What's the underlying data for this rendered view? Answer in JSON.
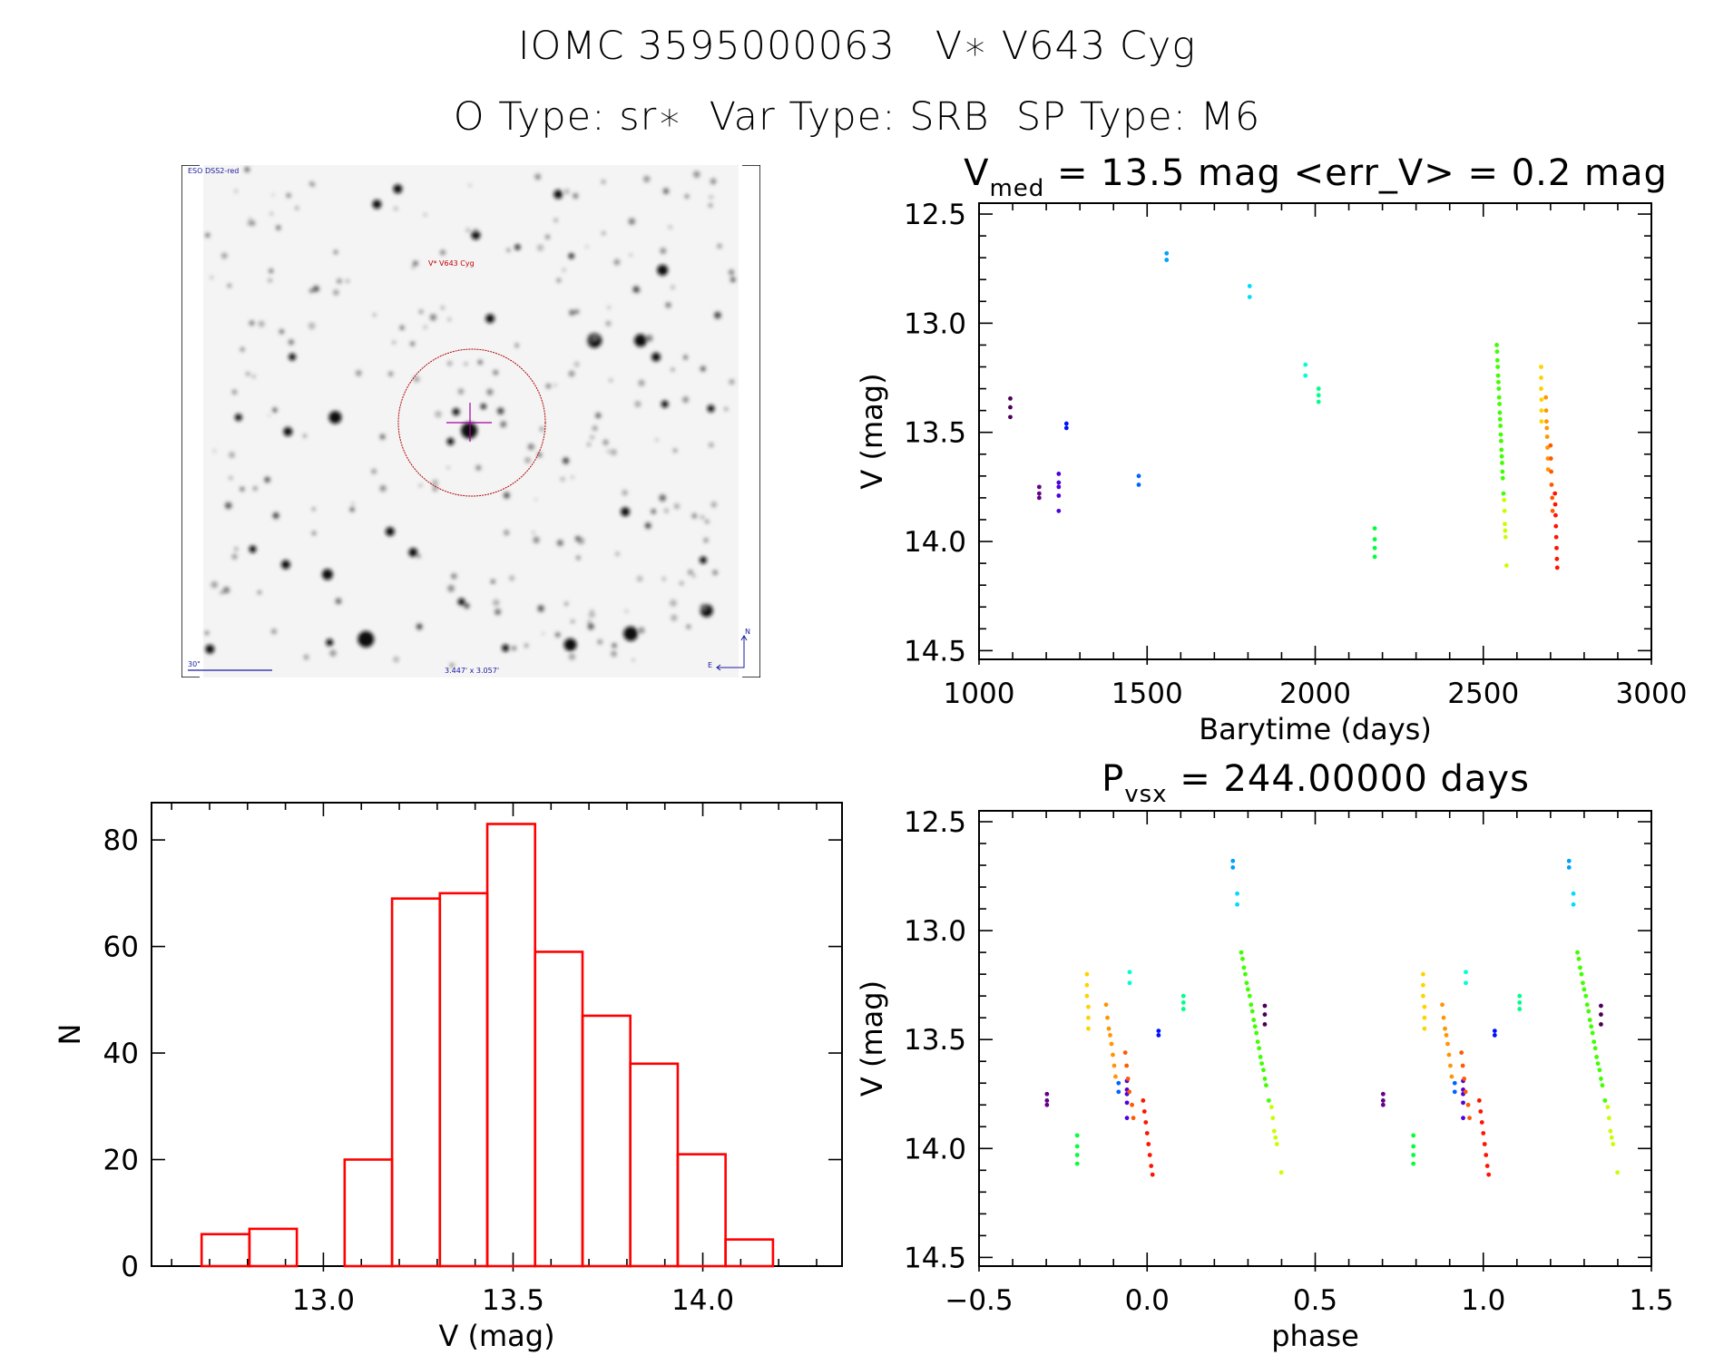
{
  "header": {
    "title_line1": "IOMC 3595000063   V∗ V643 Cyg",
    "title_line2": "O Type: sr∗  Var Type: SRB  SP Type: M6"
  },
  "sky_image": {
    "survey_label": "ESO DSS2-red",
    "target_label": "V* V643 Cyg",
    "scale_label": "30\"",
    "field_size_label": "3.447' x 3.057'",
    "north_label": "N",
    "east_label": "E",
    "colors": {
      "text": "#1a1aa0",
      "target": "#c00000",
      "circle": "#b00000",
      "crosshair": "#a000a0"
    }
  },
  "lightcurve_title": {
    "prefix": "V",
    "sub": "med",
    "rest": " = 13.5 mag <err_V> = 0.2 mag"
  },
  "phase_title": {
    "prefix": "P",
    "sub": "vsx",
    "rest": " = 244.00000 days"
  },
  "chart_data": [
    {
      "type": "scatter",
      "xlabel": "Barytime (days)",
      "ylabel": "V (mag)",
      "xlim": [
        1000,
        3000
      ],
      "ylim": [
        12.45,
        14.54
      ],
      "y_inverted": true,
      "xticks": [
        1000,
        1500,
        2000,
        2500,
        3000
      ],
      "xticklabels": [
        "1000",
        "1500",
        "2000",
        "2500",
        "3000"
      ],
      "yticks": [
        12.5,
        13.0,
        13.5,
        14.0,
        14.5
      ],
      "yticklabels": [
        "12.5",
        "13.0",
        "13.5",
        "14.0",
        "14.5"
      ],
      "grid": false,
      "series": [
        {
          "color": "#4b0055",
          "points": [
            [
              1093,
              13.345
            ],
            [
              1093,
              13.385
            ],
            [
              1093,
              13.43
            ]
          ]
        },
        {
          "color": "#64008c",
          "points": [
            [
              1179,
              13.75
            ],
            [
              1179,
              13.78
            ],
            [
              1179,
              13.8
            ]
          ]
        },
        {
          "color": "#5000dc",
          "points": [
            [
              1237,
              13.69
            ],
            [
              1237,
              13.73
            ],
            [
              1237,
              13.75
            ],
            [
              1237,
              13.79
            ],
            [
              1237,
              13.86
            ]
          ]
        },
        {
          "color": "#0010ff",
          "points": [
            [
              1260,
              13.46
            ],
            [
              1260,
              13.48
            ]
          ]
        },
        {
          "color": "#0064ff",
          "points": [
            [
              1475,
              13.7
            ],
            [
              1475,
              13.74
            ]
          ]
        },
        {
          "color": "#00a0ff",
          "points": [
            [
              1558,
              12.68
            ],
            [
              1558,
              12.71
            ]
          ]
        },
        {
          "color": "#00dcff",
          "points": [
            [
              1805,
              12.83
            ],
            [
              1805,
              12.88
            ]
          ]
        },
        {
          "color": "#00ffd2",
          "points": [
            [
              1971,
              13.19
            ],
            [
              1971,
              13.24
            ]
          ]
        },
        {
          "color": "#00ff8c",
          "points": [
            [
              2010,
              13.3
            ],
            [
              2010,
              13.33
            ],
            [
              2010,
              13.36
            ]
          ]
        },
        {
          "color": "#00ff3c",
          "points": [
            [
              2177,
              13.94
            ],
            [
              2177,
              13.99
            ],
            [
              2177,
              14.03
            ],
            [
              2177,
              14.07
            ]
          ]
        },
        {
          "color": "#3fff00",
          "points": [
            [
              2540,
              13.1
            ],
            [
              2541,
              13.13
            ],
            [
              2542,
              13.17
            ],
            [
              2543,
              13.2
            ],
            [
              2544,
              13.24
            ],
            [
              2545,
              13.27
            ],
            [
              2546,
              13.3
            ],
            [
              2547,
              13.34
            ],
            [
              2548,
              13.37
            ],
            [
              2549,
              13.41
            ],
            [
              2550,
              13.44
            ],
            [
              2551,
              13.47
            ],
            [
              2552,
              13.51
            ],
            [
              2553,
              13.54
            ],
            [
              2554,
              13.58
            ],
            [
              2555,
              13.61
            ],
            [
              2556,
              13.64
            ],
            [
              2557,
              13.68
            ],
            [
              2558,
              13.71
            ],
            [
              2560,
              13.78
            ]
          ]
        },
        {
          "color": "#c8ff00",
          "points": [
            [
              2562,
              13.81
            ],
            [
              2563,
              13.86
            ],
            [
              2564,
              13.92
            ],
            [
              2565,
              13.95
            ],
            [
              2566,
              13.98
            ],
            [
              2569,
              14.11
            ]
          ]
        },
        {
          "color": "#ffd200",
          "points": [
            [
              2672,
              13.2
            ],
            [
              2672,
              13.25
            ],
            [
              2672,
              13.3
            ],
            [
              2673,
              13.35
            ],
            [
              2673,
              13.4
            ],
            [
              2673,
              13.45
            ]
          ]
        },
        {
          "color": "#ff9600",
          "points": [
            [
              2686,
              13.34
            ],
            [
              2687,
              13.4
            ],
            [
              2688,
              13.45
            ],
            [
              2689,
              13.48
            ],
            [
              2690,
              13.52
            ],
            [
              2691,
              13.57
            ],
            [
              2692,
              13.62
            ],
            [
              2693,
              13.67
            ]
          ]
        },
        {
          "color": "#ff5a00",
          "points": [
            [
              2700,
              13.56
            ],
            [
              2701,
              13.62
            ],
            [
              2702,
              13.68
            ],
            [
              2703,
              13.74
            ],
            [
              2705,
              13.8
            ],
            [
              2706,
              13.86
            ]
          ]
        },
        {
          "color": "#ff1400",
          "points": [
            [
              2713,
              13.78
            ],
            [
              2714,
              13.83
            ],
            [
              2715,
              13.88
            ],
            [
              2716,
              13.93
            ],
            [
              2717,
              13.98
            ],
            [
              2718,
              14.03
            ],
            [
              2719,
              14.08
            ],
            [
              2720,
              14.12
            ]
          ]
        }
      ]
    },
    {
      "type": "scatter",
      "xlabel": "phase",
      "ylabel": "V (mag)",
      "period_days": 244.0,
      "xlim": [
        -0.5,
        1.5
      ],
      "ylim": [
        12.45,
        14.54
      ],
      "y_inverted": true,
      "xticks": [
        -0.5,
        0.0,
        0.5,
        1.0,
        1.5
      ],
      "xticklabels": [
        "−0.5",
        "0.0",
        "0.5",
        "1.0",
        "1.5"
      ],
      "yticks": [
        12.5,
        13.0,
        13.5,
        14.0,
        14.5
      ],
      "yticklabels": [
        "12.5",
        "13.0",
        "13.5",
        "14.0",
        "14.5"
      ],
      "grid": false,
      "phase_repeated_plus_one": true,
      "series": [
        {
          "color": "#4b0055",
          "points": [
            [
              0.35,
              13.345
            ],
            [
              0.35,
              13.385
            ],
            [
              0.35,
              13.43
            ]
          ]
        },
        {
          "color": "#64008c",
          "points": [
            [
              -0.298,
              13.75
            ],
            [
              -0.298,
              13.78
            ],
            [
              -0.298,
              13.8
            ]
          ]
        },
        {
          "color": "#5000dc",
          "points": [
            [
              -0.06,
              13.69
            ],
            [
              -0.06,
              13.73
            ],
            [
              -0.06,
              13.75
            ],
            [
              -0.06,
              13.79
            ],
            [
              -0.06,
              13.86
            ]
          ]
        },
        {
          "color": "#0010ff",
          "points": [
            [
              0.034,
              13.46
            ],
            [
              0.034,
              13.48
            ]
          ]
        },
        {
          "color": "#0064ff",
          "points": [
            [
              -0.085,
              13.7
            ],
            [
              -0.085,
              13.74
            ]
          ]
        },
        {
          "color": "#00a0ff",
          "points": [
            [
              0.255,
              12.68
            ],
            [
              0.255,
              12.71
            ]
          ]
        },
        {
          "color": "#00dcff",
          "points": [
            [
              0.268,
              12.83
            ],
            [
              0.268,
              12.88
            ]
          ]
        },
        {
          "color": "#00ffd2",
          "points": [
            [
              -0.052,
              13.19
            ],
            [
              -0.052,
              13.24
            ]
          ]
        },
        {
          "color": "#00ff8c",
          "points": [
            [
              0.108,
              13.3
            ],
            [
              0.108,
              13.33
            ],
            [
              0.108,
              13.36
            ]
          ]
        },
        {
          "color": "#00ff3c",
          "points": [
            [
              -0.208,
              13.94
            ],
            [
              -0.208,
              13.99
            ],
            [
              -0.208,
              14.03
            ],
            [
              -0.208,
              14.07
            ]
          ]
        },
        {
          "color": "#3fff00",
          "points": [
            [
              0.28,
              13.1
            ],
            [
              0.284,
              13.13
            ],
            [
              0.288,
              13.17
            ],
            [
              0.292,
              13.2
            ],
            [
              0.296,
              13.24
            ],
            [
              0.3,
              13.27
            ],
            [
              0.305,
              13.3
            ],
            [
              0.309,
              13.34
            ],
            [
              0.313,
              13.37
            ],
            [
              0.317,
              13.41
            ],
            [
              0.321,
              13.44
            ],
            [
              0.325,
              13.47
            ],
            [
              0.329,
              13.51
            ],
            [
              0.333,
              13.54
            ],
            [
              0.337,
              13.58
            ],
            [
              0.341,
              13.61
            ],
            [
              0.346,
              13.64
            ],
            [
              0.35,
              13.68
            ],
            [
              0.354,
              13.71
            ],
            [
              0.362,
              13.78
            ]
          ]
        },
        {
          "color": "#c8ff00",
          "points": [
            [
              0.37,
              13.81
            ],
            [
              0.374,
              13.86
            ],
            [
              0.378,
              13.92
            ],
            [
              0.382,
              13.95
            ],
            [
              0.386,
              13.98
            ],
            [
              0.399,
              14.11
            ]
          ]
        },
        {
          "color": "#ffd200",
          "points": [
            [
              -0.179,
              13.2
            ],
            [
              -0.179,
              13.25
            ],
            [
              -0.179,
              13.3
            ],
            [
              -0.175,
              13.35
            ],
            [
              -0.175,
              13.4
            ],
            [
              -0.175,
              13.45
            ]
          ]
        },
        {
          "color": "#ff9600",
          "points": [
            [
              -0.122,
              13.34
            ],
            [
              -0.118,
              13.4
            ],
            [
              -0.114,
              13.45
            ],
            [
              -0.11,
              13.48
            ],
            [
              -0.106,
              13.52
            ],
            [
              -0.102,
              13.57
            ],
            [
              -0.098,
              13.62
            ],
            [
              -0.094,
              13.67
            ]
          ]
        },
        {
          "color": "#ff5a00",
          "points": [
            [
              -0.065,
              13.56
            ],
            [
              -0.061,
              13.62
            ],
            [
              -0.057,
              13.68
            ],
            [
              -0.053,
              13.74
            ],
            [
              -0.045,
              13.8
            ],
            [
              -0.041,
              13.86
            ]
          ]
        },
        {
          "color": "#ff1400",
          "points": [
            [
              -0.012,
              13.78
            ],
            [
              -0.008,
              13.83
            ],
            [
              -0.004,
              13.88
            ],
            [
              0.0,
              13.93
            ],
            [
              0.004,
              13.98
            ],
            [
              0.008,
              14.03
            ],
            [
              0.012,
              14.08
            ],
            [
              0.016,
              14.12
            ]
          ]
        }
      ]
    },
    {
      "type": "bar",
      "subtype": "histogram",
      "xlabel": "V (mag)",
      "ylabel": "N",
      "xlim": [
        12.547,
        14.367
      ],
      "ylim": [
        0,
        87
      ],
      "xticks": [
        13.0,
        13.5,
        14.0
      ],
      "xticklabels": [
        "13.0",
        "13.5",
        "14.0"
      ],
      "yticks": [
        0,
        20,
        40,
        60,
        80
      ],
      "yticklabels": [
        "0",
        "20",
        "40",
        "60",
        "80"
      ],
      "grid": false,
      "color": "#ff0000",
      "bin_edges": [
        12.679,
        12.805,
        12.93,
        13.056,
        13.181,
        13.307,
        13.432,
        13.558,
        13.683,
        13.809,
        13.934,
        14.06,
        14.185
      ],
      "counts": [
        6,
        7,
        0,
        20,
        69,
        70,
        83,
        59,
        47,
        38,
        21,
        5
      ]
    }
  ]
}
